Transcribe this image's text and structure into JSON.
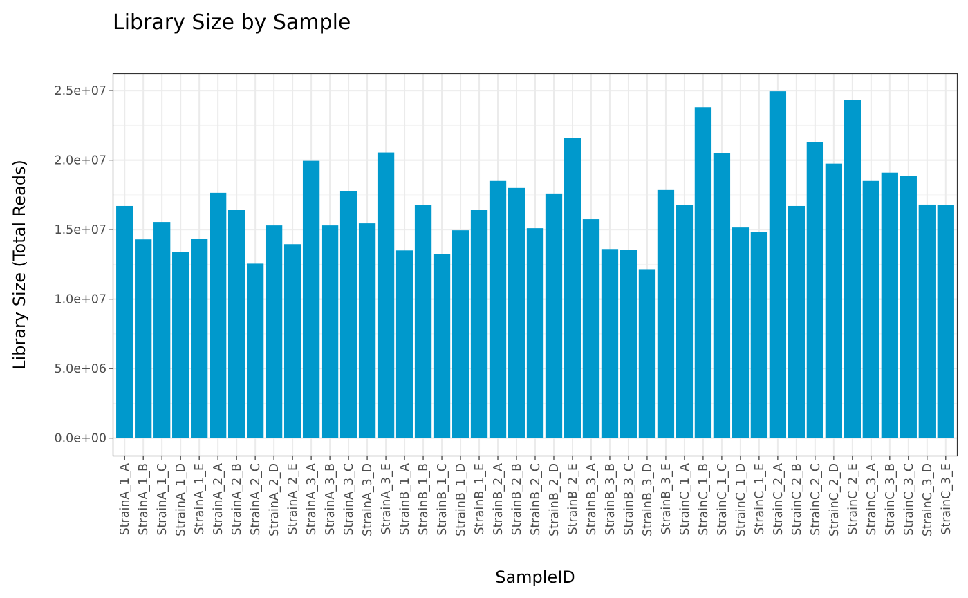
{
  "chart_data": {
    "type": "bar",
    "title": "Library Size by Sample",
    "xlabel": "SampleID",
    "ylabel": "Library Size (Total Reads)",
    "ylim": [
      -1260000,
      26200000
    ],
    "yticks": [
      0,
      5000000,
      10000000,
      15000000,
      20000000,
      25000000
    ],
    "ytick_labels": [
      "0.0e+00",
      "5.0e+06",
      "1.0e+07",
      "1.5e+07",
      "2.0e+07",
      "2.5e+07"
    ],
    "grid": true,
    "bar_color": "#0099CC",
    "categories": [
      "StrainA_1_A",
      "StrainA_1_B",
      "StrainA_1_C",
      "StrainA_1_D",
      "StrainA_1_E",
      "StrainA_2_A",
      "StrainA_2_B",
      "StrainA_2_C",
      "StrainA_2_D",
      "StrainA_2_E",
      "StrainA_3_A",
      "StrainA_3_B",
      "StrainA_3_C",
      "StrainA_3_D",
      "StrainA_3_E",
      "StrainB_1_A",
      "StrainB_1_B",
      "StrainB_1_C",
      "StrainB_1_D",
      "StrainB_1_E",
      "StrainB_2_A",
      "StrainB_2_B",
      "StrainB_2_C",
      "StrainB_2_D",
      "StrainB_2_E",
      "StrainB_3_A",
      "StrainB_3_B",
      "StrainB_3_C",
      "StrainB_3_D",
      "StrainB_3_E",
      "StrainC_1_A",
      "StrainC_1_B",
      "StrainC_1_C",
      "StrainC_1_D",
      "StrainC_1_E",
      "StrainC_2_A",
      "StrainC_2_B",
      "StrainC_2_C",
      "StrainC_2_D",
      "StrainC_2_E",
      "StrainC_3_A",
      "StrainC_3_B",
      "StrainC_3_C",
      "StrainC_3_D",
      "StrainC_3_E"
    ],
    "values": [
      16700000,
      14300000,
      15550000,
      13400000,
      14350000,
      17650000,
      16400000,
      12550000,
      15300000,
      13950000,
      19950000,
      15300000,
      17750000,
      15450000,
      20550000,
      13500000,
      16750000,
      13250000,
      14950000,
      16400000,
      18500000,
      18000000,
      15100000,
      17600000,
      21600000,
      15750000,
      13600000,
      13550000,
      12150000,
      17850000,
      16750000,
      23800000,
      20500000,
      15150000,
      14850000,
      24950000,
      16700000,
      21300000,
      19750000,
      24350000,
      18500000,
      19100000,
      18850000,
      16800000,
      16750000
    ]
  }
}
